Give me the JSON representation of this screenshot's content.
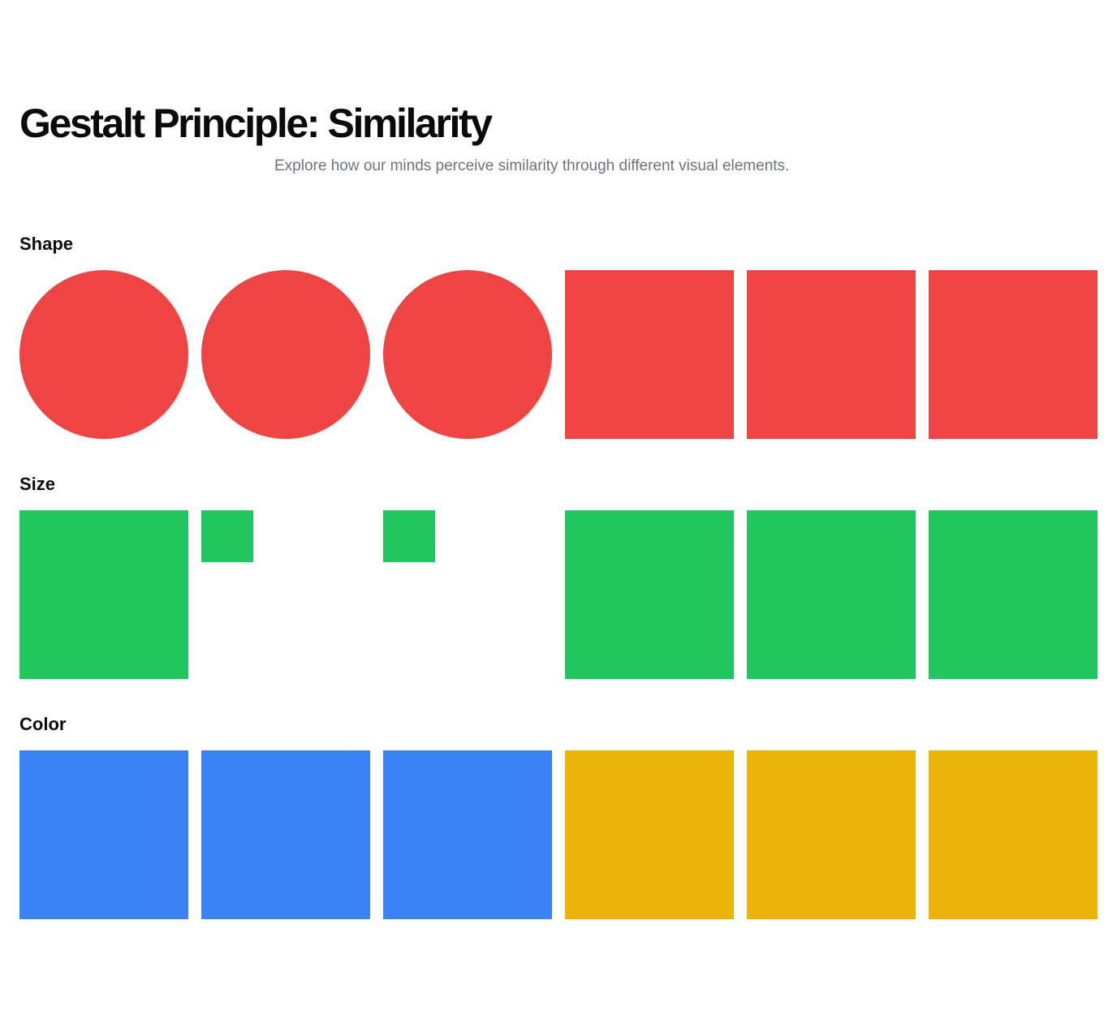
{
  "header": {
    "title": "Gestalt Principle: Similarity",
    "subtitle": "Explore how our minds perceive similarity through different visual elements."
  },
  "colors": {
    "red": "#ef4444",
    "green": "#22c55e",
    "blue": "#3b82f6",
    "yellow": "#eab308"
  },
  "sections": [
    {
      "title": "Shape",
      "items": [
        {
          "shape": "circle",
          "size": "large",
          "color": "#ef4444"
        },
        {
          "shape": "circle",
          "size": "large",
          "color": "#ef4444"
        },
        {
          "shape": "circle",
          "size": "large",
          "color": "#ef4444"
        },
        {
          "shape": "square",
          "size": "large",
          "color": "#ef4444"
        },
        {
          "shape": "square",
          "size": "large",
          "color": "#ef4444"
        },
        {
          "shape": "square",
          "size": "large",
          "color": "#ef4444"
        }
      ]
    },
    {
      "title": "Size",
      "items": [
        {
          "shape": "square",
          "size": "large",
          "color": "#22c55e"
        },
        {
          "shape": "square",
          "size": "small",
          "color": "#22c55e"
        },
        {
          "shape": "square",
          "size": "small",
          "color": "#22c55e"
        },
        {
          "shape": "square",
          "size": "large",
          "color": "#22c55e"
        },
        {
          "shape": "square",
          "size": "large",
          "color": "#22c55e"
        },
        {
          "shape": "square",
          "size": "large",
          "color": "#22c55e"
        }
      ]
    },
    {
      "title": "Color",
      "items": [
        {
          "shape": "square",
          "size": "large",
          "color": "#3b82f6"
        },
        {
          "shape": "square",
          "size": "large",
          "color": "#3b82f6"
        },
        {
          "shape": "square",
          "size": "large",
          "color": "#3b82f6"
        },
        {
          "shape": "square",
          "size": "large",
          "color": "#eab308"
        },
        {
          "shape": "square",
          "size": "large",
          "color": "#eab308"
        },
        {
          "shape": "square",
          "size": "large",
          "color": "#eab308"
        }
      ]
    }
  ]
}
